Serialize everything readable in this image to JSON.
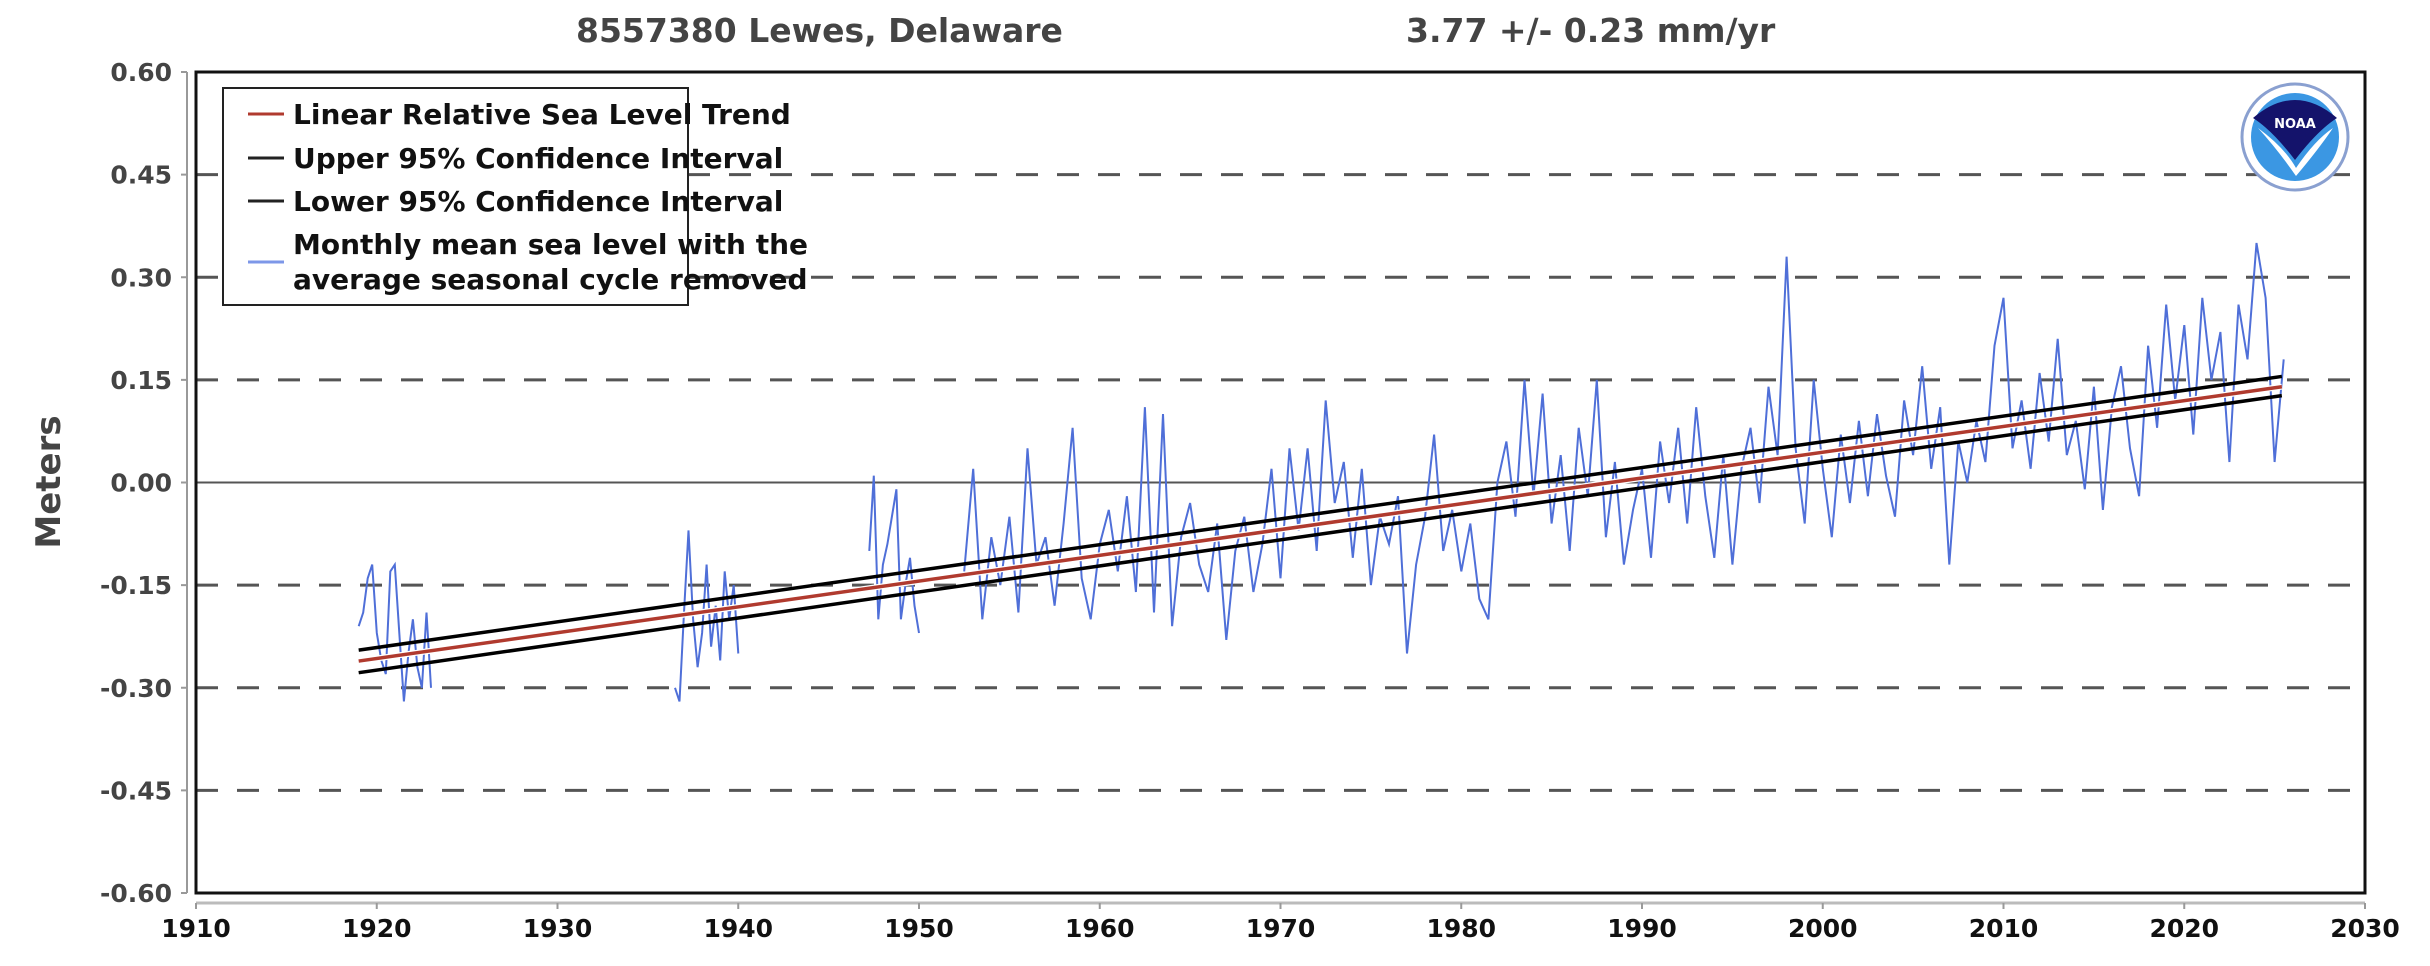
{
  "chart_data": {
    "type": "line",
    "title": "8557380 Lewes, Delaware",
    "subtitle": "3.77 +/-  0.23 mm/yr",
    "xlabel": "",
    "ylabel": "Meters",
    "xlim": [
      1910,
      2030
    ],
    "ylim": [
      -0.6,
      0.6
    ],
    "x_ticks": [
      "1910",
      "1920",
      "1930",
      "1940",
      "1950",
      "1960",
      "1970",
      "1980",
      "1990",
      "2000",
      "2010",
      "2020",
      "2030"
    ],
    "y_ticks": [
      "0.60",
      "0.45",
      "0.30",
      "0.15",
      "0.00",
      "-0.15",
      "-0.30",
      "-0.45",
      "-0.60"
    ],
    "grid": "horizontal dashed, solid at 0.00",
    "legend_position": "top-left",
    "logo_text": "NOAA",
    "colors": {
      "trend": "#b03a2e",
      "confidence": "#000000",
      "monthly": "#4f6fd8",
      "grid": "#555555",
      "logo_dark": "#14136b",
      "logo_light": "#3b97e3"
    },
    "legend": [
      {
        "label": "Linear Relative Sea Level Trend",
        "color": "#b03a2e"
      },
      {
        "label": "Upper 95% Confidence Interval",
        "color": "#222222"
      },
      {
        "label": "Lower 95% Confidence Interval",
        "color": "#222222"
      },
      {
        "label": "Monthly mean sea level with the",
        "label2": "average seasonal cycle removed",
        "color": "#7d97e8"
      }
    ],
    "trend": {
      "x": [
        1919.0,
        2025.4
      ],
      "y": [
        -0.261,
        0.14
      ]
    },
    "upper_ci": {
      "x": [
        1919.0,
        2025.4
      ],
      "y": [
        -0.245,
        0.155
      ]
    },
    "lower_ci": {
      "x": [
        1919.0,
        2025.4
      ],
      "y": [
        -0.278,
        0.127
      ]
    },
    "monthly_segments": [
      {
        "x_start": 1919.0,
        "x_step": 0.25,
        "values": [
          -0.21,
          -0.19,
          -0.14,
          -0.12,
          -0.22,
          -0.26,
          -0.28,
          -0.13,
          -0.12,
          -0.22,
          -0.32,
          -0.25,
          -0.2,
          -0.27,
          -0.3,
          -0.19,
          -0.3
        ]
      },
      {
        "x_start": 1936.5,
        "x_step": 0.25,
        "values": [
          -0.3,
          -0.32,
          -0.19,
          -0.07,
          -0.2,
          -0.27,
          -0.22,
          -0.12,
          -0.24,
          -0.18,
          -0.26,
          -0.13,
          -0.2,
          -0.15,
          -0.25
        ]
      },
      {
        "x_start": 1947.25,
        "x_step": 0.25,
        "values": [
          -0.1,
          0.01,
          -0.2,
          -0.12,
          -0.09,
          -0.05,
          -0.01,
          -0.2,
          -0.15,
          -0.11,
          -0.18,
          -0.22
        ]
      },
      {
        "x_start": 1952.5,
        "x_step": 0.5,
        "values": [
          -0.13,
          0.02,
          -0.2,
          -0.08,
          -0.15,
          -0.05,
          -0.19,
          0.05,
          -0.12,
          -0.08,
          -0.18,
          -0.06,
          0.08,
          -0.14,
          -0.2,
          -0.09,
          -0.04,
          -0.13,
          -0.02,
          -0.16,
          0.11,
          -0.19,
          0.1,
          -0.21,
          -0.08,
          -0.03,
          -0.12,
          -0.16,
          -0.06,
          -0.23,
          -0.1,
          -0.05,
          -0.16,
          -0.09,
          0.02,
          -0.14,
          0.05,
          -0.07,
          0.05,
          -0.1,
          0.12,
          -0.03,
          0.03,
          -0.11,
          0.02,
          -0.15,
          -0.05,
          -0.09,
          -0.02,
          -0.25,
          -0.12,
          -0.05,
          0.07,
          -0.1,
          -0.04,
          -0.13,
          -0.06,
          -0.17,
          -0.2,
          0.0,
          0.06,
          -0.05,
          0.15,
          -0.02,
          0.13,
          -0.06,
          0.04,
          -0.1,
          0.08,
          -0.02,
          0.15,
          -0.08,
          0.03,
          -0.12,
          -0.04,
          0.02,
          -0.11,
          0.06,
          -0.03,
          0.08,
          -0.06,
          0.11,
          -0.02,
          -0.11,
          0.04,
          -0.12,
          0.02,
          0.08,
          -0.03,
          0.14,
          0.04,
          0.33,
          0.05,
          -0.06,
          0.15,
          0.02,
          -0.08,
          0.07,
          -0.03,
          0.09,
          -0.02,
          0.1,
          0.01,
          -0.05,
          0.12,
          0.04,
          0.17,
          0.02,
          0.11,
          -0.12,
          0.06,
          0.0,
          0.09,
          0.03,
          0.2,
          0.27,
          0.05,
          0.12,
          0.02,
          0.16,
          0.06,
          0.21,
          0.04,
          0.09,
          -0.01,
          0.14,
          -0.04,
          0.11,
          0.17,
          0.05,
          -0.02,
          0.2,
          0.08,
          0.26,
          0.12,
          0.23,
          0.07,
          0.27,
          0.15,
          0.22,
          0.03,
          0.26,
          0.18,
          0.35,
          0.27,
          0.03,
          0.18
        ]
      }
    ]
  }
}
